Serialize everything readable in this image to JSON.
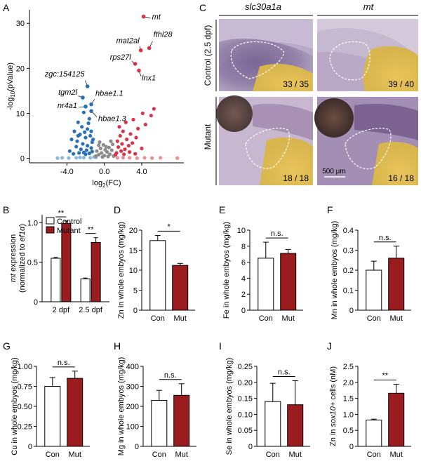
{
  "panel_letters": {
    "A": "A",
    "B": "B",
    "C": "C",
    "D": "D",
    "E": "E",
    "F": "F",
    "G": "G",
    "H": "H",
    "I": "I",
    "J": "J"
  },
  "colors": {
    "control_fill": "#ffffff",
    "mutant_fill": "#9b1c1f",
    "volcano_blue": "#2b6fb8",
    "volcano_lightblue": "#8ab8e0",
    "volcano_gray": "#8c8c8c",
    "volcano_red": "#d9334a",
    "volcano_pink": "#ef8c95"
  },
  "panelC": {
    "columns": [
      "slc30a1a",
      "mt"
    ],
    "row_labels": [
      "Control (2.5 dpf)",
      "Mutant"
    ],
    "counts": [
      "33 / 35",
      "39 / 40",
      "18 / 18",
      "16 / 18"
    ],
    "scale_bar": "500 µm"
  },
  "chart_data": [
    {
      "id": "A",
      "type": "scatter",
      "title": "",
      "xlabel": "log2(FC)",
      "ylabel": "-log10(pValue)",
      "xticks": [
        "-4.0",
        "0.0",
        "4.0"
      ],
      "yticks": [
        "0",
        "10",
        "20",
        "30"
      ],
      "xlim": [
        -8,
        8.5
      ],
      "ylim": [
        -1,
        33
      ],
      "grid": false,
      "labeled_points": [
        {
          "name": "mt",
          "x": 4.2,
          "y": 31.5,
          "group": "up"
        },
        {
          "name": "mat2al",
          "x": 3.9,
          "y": 24,
          "group": "up"
        },
        {
          "name": "fthl28",
          "x": 4.8,
          "y": 24.5,
          "group": "up"
        },
        {
          "name": "rps27l",
          "x": 3.3,
          "y": 21,
          "group": "up"
        },
        {
          "name": "lnx1",
          "x": 3.7,
          "y": 19.5,
          "group": "up"
        },
        {
          "name": "zgc:154125",
          "x": -1.8,
          "y": 16,
          "group": "down"
        },
        {
          "name": "tgm2l",
          "x": -2.3,
          "y": 13.5,
          "group": "down"
        },
        {
          "name": "hbae1.1",
          "x": -1.4,
          "y": 12,
          "group": "down"
        },
        {
          "name": "nr4a1",
          "x": -2.0,
          "y": 11.5,
          "group": "down"
        },
        {
          "name": "hbae1.3",
          "x": -1.4,
          "y": 10.5,
          "group": "down"
        }
      ],
      "points": [
        {
          "x": -2.2,
          "y": 10.2,
          "g": "down"
        },
        {
          "x": -1.6,
          "y": 8.8,
          "g": "down"
        },
        {
          "x": -2.8,
          "y": 8.0,
          "g": "down"
        },
        {
          "x": -2.4,
          "y": 7.0,
          "g": "down"
        },
        {
          "x": -1.8,
          "y": 6.5,
          "g": "down"
        },
        {
          "x": -3.2,
          "y": 6.0,
          "g": "down"
        },
        {
          "x": -2.6,
          "y": 5.3,
          "g": "down"
        },
        {
          "x": -1.5,
          "y": 5.0,
          "g": "down"
        },
        {
          "x": -2.0,
          "y": 4.6,
          "g": "down"
        },
        {
          "x": -3.5,
          "y": 4.2,
          "g": "down"
        },
        {
          "x": -2.9,
          "y": 3.8,
          "g": "down"
        },
        {
          "x": -1.3,
          "y": 3.6,
          "g": "down"
        },
        {
          "x": -2.3,
          "y": 3.2,
          "g": "down"
        },
        {
          "x": -1.8,
          "y": 2.8,
          "g": "down"
        },
        {
          "x": -3.0,
          "y": 2.6,
          "g": "down"
        },
        {
          "x": -1.4,
          "y": 2.3,
          "g": "down"
        },
        {
          "x": -2.5,
          "y": 2.0,
          "g": "down"
        },
        {
          "x": -1.9,
          "y": 1.8,
          "g": "down"
        },
        {
          "x": -3.7,
          "y": 1.6,
          "g": "down"
        },
        {
          "x": -1.3,
          "y": 1.5,
          "g": "down"
        },
        {
          "x": -2.2,
          "y": 1.3,
          "g": "down"
        },
        {
          "x": -2.7,
          "y": 1.2,
          "g": "down"
        },
        {
          "x": -1.6,
          "y": 1.1,
          "g": "down"
        },
        {
          "x": -3.3,
          "y": 1.0,
          "g": "down"
        },
        {
          "x": -2.0,
          "y": 0.9,
          "g": "down"
        },
        {
          "x": -1.4,
          "y": 6.0,
          "g": "down"
        },
        {
          "x": -2.1,
          "y": 5.8,
          "g": "down"
        },
        {
          "x": -1.2,
          "y": 4.2,
          "g": "down"
        },
        {
          "x": -2.8,
          "y": 5.0,
          "g": "down"
        },
        {
          "x": -1.7,
          "y": 7.8,
          "g": "down"
        },
        {
          "x": -0.9,
          "y": 0.2,
          "g": "ns_lo"
        },
        {
          "x": -1.5,
          "y": 0.1,
          "g": "ns_lo"
        },
        {
          "x": -2.2,
          "y": 0.15,
          "g": "ns_lo"
        },
        {
          "x": -3.0,
          "y": 0.1,
          "g": "ns_lo"
        },
        {
          "x": -3.8,
          "y": 0.05,
          "g": "ns_lo"
        },
        {
          "x": -4.5,
          "y": 0.1,
          "g": "ns_lo"
        },
        {
          "x": -5.0,
          "y": 0.05,
          "g": "ns_lo"
        },
        {
          "x": -1.1,
          "y": 0.3,
          "g": "ns_lo"
        },
        {
          "x": -2.6,
          "y": 0.2,
          "g": "ns_lo"
        },
        {
          "x": -0.6,
          "y": 0.8,
          "g": "ns"
        },
        {
          "x": -0.3,
          "y": 1.2,
          "g": "ns"
        },
        {
          "x": 0.0,
          "y": 0.6,
          "g": "ns"
        },
        {
          "x": 0.3,
          "y": 1.4,
          "g": "ns"
        },
        {
          "x": 0.6,
          "y": 0.9,
          "g": "ns"
        },
        {
          "x": -0.8,
          "y": 1.6,
          "g": "ns"
        },
        {
          "x": 0.8,
          "y": 1.8,
          "g": "ns"
        },
        {
          "x": -0.4,
          "y": 2.2,
          "g": "ns"
        },
        {
          "x": 0.2,
          "y": 2.6,
          "g": "ns"
        },
        {
          "x": -0.1,
          "y": 3.0,
          "g": "ns"
        },
        {
          "x": 0.5,
          "y": 2.4,
          "g": "ns"
        },
        {
          "x": -0.6,
          "y": 2.9,
          "g": "ns"
        },
        {
          "x": 0.9,
          "y": 3.1,
          "g": "ns"
        },
        {
          "x": -0.2,
          "y": 0.3,
          "g": "ns"
        },
        {
          "x": 0.4,
          "y": 0.4,
          "g": "ns"
        },
        {
          "x": -0.9,
          "y": 0.5,
          "g": "ns"
        },
        {
          "x": 1.0,
          "y": 0.5,
          "g": "ns"
        },
        {
          "x": 0.1,
          "y": 1.9,
          "g": "ns"
        },
        {
          "x": -0.5,
          "y": 3.6,
          "g": "ns"
        },
        {
          "x": 0.7,
          "y": 3.8,
          "g": "ns"
        },
        {
          "x": 1.3,
          "y": 1.2,
          "g": "up"
        },
        {
          "x": 1.8,
          "y": 1.6,
          "g": "up"
        },
        {
          "x": 2.2,
          "y": 2.0,
          "g": "up"
        },
        {
          "x": 1.5,
          "y": 2.5,
          "g": "up"
        },
        {
          "x": 2.6,
          "y": 2.8,
          "g": "up"
        },
        {
          "x": 1.9,
          "y": 3.2,
          "g": "up"
        },
        {
          "x": 3.0,
          "y": 3.4,
          "g": "up"
        },
        {
          "x": 1.4,
          "y": 3.8,
          "g": "up"
        },
        {
          "x": 2.4,
          "y": 4.2,
          "g": "up"
        },
        {
          "x": 3.4,
          "y": 4.6,
          "g": "up"
        },
        {
          "x": 1.7,
          "y": 5.0,
          "g": "up"
        },
        {
          "x": 2.8,
          "y": 5.4,
          "g": "up"
        },
        {
          "x": 2.0,
          "y": 6.0,
          "g": "up"
        },
        {
          "x": 3.6,
          "y": 6.6,
          "g": "up"
        },
        {
          "x": 1.6,
          "y": 7.0,
          "g": "up"
        },
        {
          "x": 4.4,
          "y": 7.5,
          "g": "up"
        },
        {
          "x": 2.3,
          "y": 8.0,
          "g": "up"
        },
        {
          "x": 3.1,
          "y": 8.6,
          "g": "up"
        },
        {
          "x": 5.0,
          "y": 9.5,
          "g": "up"
        },
        {
          "x": 4.1,
          "y": 10.0,
          "g": "up"
        },
        {
          "x": 5.3,
          "y": 11.0,
          "g": "up"
        },
        {
          "x": 3.3,
          "y": 1.0,
          "g": "up"
        },
        {
          "x": 2.7,
          "y": 1.4,
          "g": "up"
        },
        {
          "x": 4.0,
          "y": 2.2,
          "g": "up"
        },
        {
          "x": 1.2,
          "y": 0.8,
          "g": "up"
        },
        {
          "x": 2.1,
          "y": 0.9,
          "g": "up"
        },
        {
          "x": 1.4,
          "y": 0.1,
          "g": "up_lo"
        },
        {
          "x": 2.0,
          "y": 0.15,
          "g": "up_lo"
        },
        {
          "x": 2.7,
          "y": 0.1,
          "g": "up_lo"
        },
        {
          "x": 3.5,
          "y": 0.05,
          "g": "up_lo"
        },
        {
          "x": 4.3,
          "y": 0.1,
          "g": "up_lo"
        },
        {
          "x": 5.1,
          "y": 0.05,
          "g": "up_lo"
        },
        {
          "x": 6.0,
          "y": 0.1,
          "g": "up_lo"
        },
        {
          "x": 7.8,
          "y": 0.05,
          "g": "up_lo"
        }
      ]
    },
    {
      "id": "B",
      "type": "bar",
      "title": "",
      "ylabel_parts": [
        "mt",
        " expression"
      ],
      "ylabel_line2_parts": [
        "(normalized to ",
        "ef1α",
        ")"
      ],
      "categories": [
        "2 dpf",
        "2.5 dpf"
      ],
      "ylim": [
        0,
        1.1
      ],
      "yticks": [
        "0",
        "0.5",
        "1.0"
      ],
      "legend": "top-left",
      "series": [
        {
          "name": "Control",
          "values": [
            0.55,
            0.29
          ],
          "errors": [
            0.01,
            0.01
          ]
        },
        {
          "name": "Mutant",
          "values": [
            0.99,
            0.75
          ],
          "errors": [
            0.03,
            0.06
          ]
        }
      ],
      "significance": [
        "**",
        "**"
      ]
    },
    {
      "id": "D",
      "type": "bar",
      "title": "",
      "ylabel": "Zn in whole embyos (mg/kg)",
      "categories": [
        "Con",
        "Mut"
      ],
      "values": [
        17.4,
        11.2
      ],
      "errors": [
        1.3,
        0.5
      ],
      "ylim": [
        0,
        20
      ],
      "yticks": [
        "0",
        "5",
        "10",
        "15",
        "20"
      ],
      "significance": "*"
    },
    {
      "id": "E",
      "type": "bar",
      "title": "",
      "ylabel": "Fe in whole embyos (mg/kg)",
      "categories": [
        "Con",
        "Mut"
      ],
      "values": [
        6.5,
        7.1
      ],
      "errors": [
        2.0,
        0.5
      ],
      "ylim": [
        0,
        10
      ],
      "yticks": [
        "0",
        "2",
        "4",
        "6",
        "8",
        "10"
      ],
      "significance": "n.s."
    },
    {
      "id": "F",
      "type": "bar",
      "title": "",
      "ylabel": "Mn in whole embyos (mg/kg)",
      "categories": [
        "Con",
        "Mut"
      ],
      "values": [
        0.2,
        0.26
      ],
      "errors": [
        0.045,
        0.06
      ],
      "ylim": [
        0,
        0.4
      ],
      "yticks": [
        "0",
        "0.1",
        "0.2",
        "0.3",
        "0.4"
      ],
      "significance": "n.s."
    },
    {
      "id": "G",
      "type": "bar",
      "title": "",
      "ylabel": "Cu in whole embyos (mg/kg)",
      "categories": [
        "Con",
        "Mut"
      ],
      "values": [
        0.75,
        0.85
      ],
      "errors": [
        0.11,
        0.09
      ],
      "ylim": [
        0,
        1.0
      ],
      "yticks": [
        "0",
        "0.25",
        "0.50",
        "0.75",
        "1.00"
      ],
      "significance": "n.s."
    },
    {
      "id": "H",
      "type": "bar",
      "title": "",
      "ylabel": "Mg in whole embyos (mg/kg)",
      "categories": [
        "Con",
        "Mut"
      ],
      "values": [
        230,
        255
      ],
      "errors": [
        50,
        58
      ],
      "ylim": [
        0,
        400
      ],
      "yticks": [
        "0",
        "100",
        "200",
        "300",
        "400"
      ],
      "significance": "n.s."
    },
    {
      "id": "I",
      "type": "bar",
      "title": "",
      "ylabel": "Se in whole embyos (mg/kg)",
      "categories": [
        "Con",
        "Mut"
      ],
      "values": [
        0.14,
        0.13
      ],
      "errors": [
        0.057,
        0.075
      ],
      "ylim": [
        0,
        0.25
      ],
      "yticks": [
        "0",
        "0.05",
        "0.10",
        "0.15",
        "0.20",
        "0.25"
      ],
      "significance": "n.s."
    },
    {
      "id": "J",
      "type": "bar",
      "title": "",
      "ylabel_parts": [
        "Zn in ",
        "sox10+",
        " cells (nM)"
      ],
      "categories": [
        "Con",
        "Mut"
      ],
      "values": [
        0.82,
        1.66
      ],
      "errors": [
        0.03,
        0.28
      ],
      "ylim": [
        0,
        2.5
      ],
      "yticks": [
        "0",
        "0.5",
        "1.0",
        "1.5",
        "2.0",
        "2.5"
      ],
      "significance": "**"
    }
  ]
}
